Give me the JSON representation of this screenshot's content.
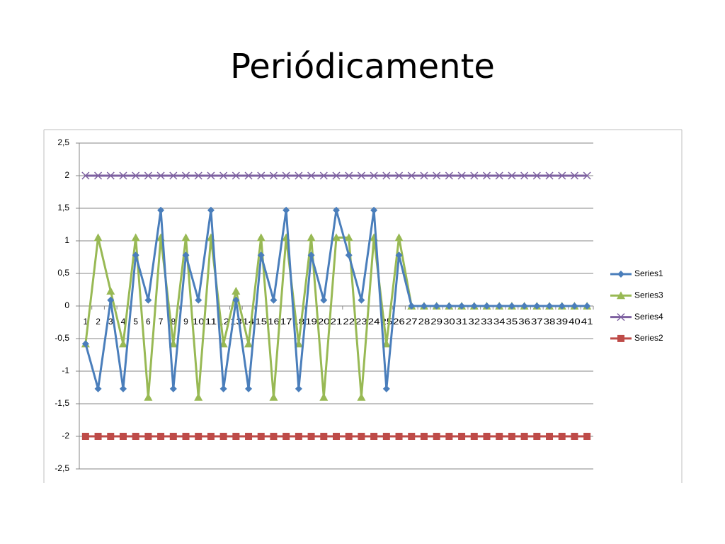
{
  "chart_data": {
    "type": "line",
    "title": "Periódicamente",
    "categories": [
      "1",
      "2",
      "3",
      "4",
      "5",
      "6",
      "7",
      "8",
      "9",
      "10",
      "11",
      "12",
      "13",
      "14",
      "15",
      "16",
      "17",
      "18",
      "19",
      "20",
      "21",
      "22",
      "23",
      "24",
      "25",
      "26",
      "27",
      "28",
      "29",
      "30",
      "31",
      "32",
      "33",
      "34",
      "35",
      "36",
      "37",
      "38",
      "39",
      "40",
      "41"
    ],
    "series": [
      {
        "name": "Series1",
        "color": "#4a7ebb",
        "marker": "diamond",
        "values": [
          -0.58,
          -1.27,
          0.09,
          -1.27,
          0.78,
          0.09,
          1.47,
          -1.27,
          0.78,
          0.09,
          1.47,
          -1.27,
          0.09,
          -1.27,
          0.78,
          0.09,
          1.47,
          -1.27,
          0.78,
          0.09,
          1.47,
          0.78,
          0.09,
          1.47,
          -1.27,
          0.78,
          0,
          0,
          0,
          0,
          0,
          0,
          0,
          0,
          0,
          0,
          0,
          0,
          0,
          0,
          0
        ]
      },
      {
        "name": "Series3",
        "color": "#98b954",
        "marker": "triangle",
        "values": [
          -0.58,
          1.05,
          0.23,
          -0.58,
          1.05,
          -1.4,
          1.05,
          -0.58,
          1.05,
          -1.4,
          1.05,
          -0.58,
          0.23,
          -0.58,
          1.05,
          -1.4,
          1.05,
          -0.58,
          1.05,
          -1.4,
          1.05,
          1.05,
          -1.4,
          1.05,
          -0.58,
          1.05,
          0,
          0,
          0,
          0,
          0,
          0,
          0,
          0,
          0,
          0,
          0,
          0,
          0,
          0,
          0
        ]
      },
      {
        "name": "Series4",
        "color": "#7d60a0",
        "marker": "x",
        "values": [
          2,
          2,
          2,
          2,
          2,
          2,
          2,
          2,
          2,
          2,
          2,
          2,
          2,
          2,
          2,
          2,
          2,
          2,
          2,
          2,
          2,
          2,
          2,
          2,
          2,
          2,
          2,
          2,
          2,
          2,
          2,
          2,
          2,
          2,
          2,
          2,
          2,
          2,
          2,
          2,
          2
        ]
      },
      {
        "name": "Series2",
        "color": "#be4b48",
        "marker": "square",
        "values": [
          -2,
          -2,
          -2,
          -2,
          -2,
          -2,
          -2,
          -2,
          -2,
          -2,
          -2,
          -2,
          -2,
          -2,
          -2,
          -2,
          -2,
          -2,
          -2,
          -2,
          -2,
          -2,
          -2,
          -2,
          -2,
          -2,
          -2,
          -2,
          -2,
          -2,
          -2,
          -2,
          -2,
          -2,
          -2,
          -2,
          -2,
          -2,
          -2,
          -2,
          -2
        ]
      }
    ],
    "ylim": [
      -2.5,
      2.5
    ],
    "yticks": [
      {
        "value": -2.5,
        "label": "-2,5"
      },
      -2,
      {
        "value": -1.5,
        "label": "-1,5"
      },
      -1,
      {
        "value": -0.5,
        "label": "-0,5"
      },
      0,
      {
        "value": 0.5,
        "label": "0,5"
      },
      1,
      {
        "value": 1.5,
        "label": "1,5"
      },
      2,
      {
        "value": 2.5,
        "label": "2,5"
      }
    ],
    "grid": true,
    "legend": "right"
  }
}
